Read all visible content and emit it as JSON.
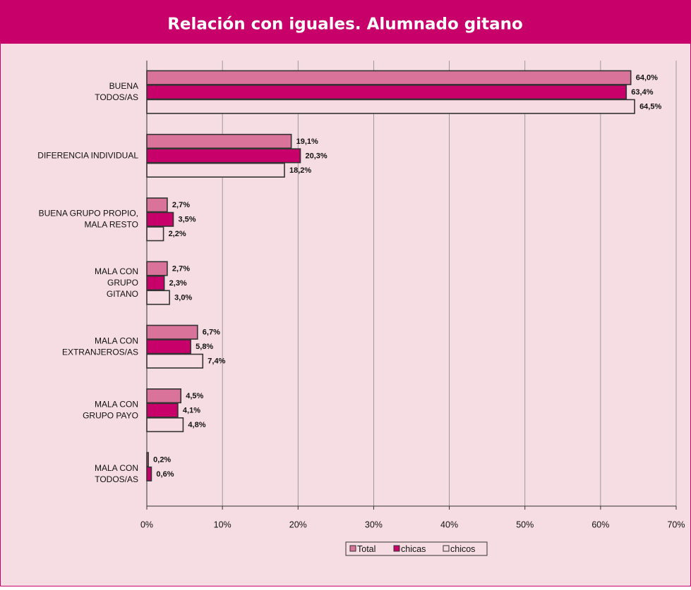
{
  "chart_data": {
    "type": "bar",
    "orientation": "horizontal",
    "title": "Relación con iguales. Alumnado gitano",
    "categories": [
      [
        "BUENA",
        "TODOS/AS"
      ],
      [
        "DIFERENCIA INDIVIDUAL"
      ],
      [
        "BUENA GRUPO PROPIO,",
        "MALA RESTO"
      ],
      [
        "MALA CON",
        "GRUPO",
        "GITANO"
      ],
      [
        "MALA CON",
        "EXTRANJEROS/AS"
      ],
      [
        "MALA  CON",
        "GRUPO PAYO"
      ],
      [
        "MALA  CON",
        "TODOS/AS"
      ]
    ],
    "series": [
      {
        "name": "Total",
        "color": "#d9739a",
        "values": [
          64.0,
          19.1,
          2.7,
          2.7,
          6.7,
          4.5,
          0.2
        ],
        "value_labels": [
          "64,0%",
          "19,1%",
          "2,7%",
          "2,7%",
          "6,7%",
          "4,5%",
          "0,2%"
        ]
      },
      {
        "name": "chicas",
        "color": "#c8006a",
        "values": [
          63.4,
          20.3,
          3.5,
          2.3,
          5.8,
          4.1,
          0.6
        ],
        "value_labels": [
          "63,4%",
          "20,3%",
          "3,5%",
          "2,3%",
          "5,8%",
          "4,1%",
          "0,6%"
        ]
      },
      {
        "name": "chicos",
        "color": "#f7dbe3",
        "values": [
          64.5,
          18.2,
          2.2,
          3.0,
          7.4,
          4.8,
          null
        ],
        "value_labels": [
          "64,5%",
          "18,2%",
          "2,2%",
          "3,0%",
          "7,4%",
          "4,8%",
          null
        ]
      }
    ],
    "xlim": [
      0,
      70
    ],
    "xticks": [
      {
        "value": 0,
        "label": "0%"
      },
      {
        "value": 10,
        "label": "10%"
      },
      {
        "value": 20,
        "label": "20%"
      },
      {
        "value": 30,
        "label": "30%"
      },
      {
        "value": 40,
        "label": "40%"
      },
      {
        "value": 50,
        "label": "50%"
      },
      {
        "value": 60,
        "label": "60%"
      },
      {
        "value": 70,
        "label": "70%"
      }
    ],
    "grid": true,
    "legend": "bottom"
  }
}
